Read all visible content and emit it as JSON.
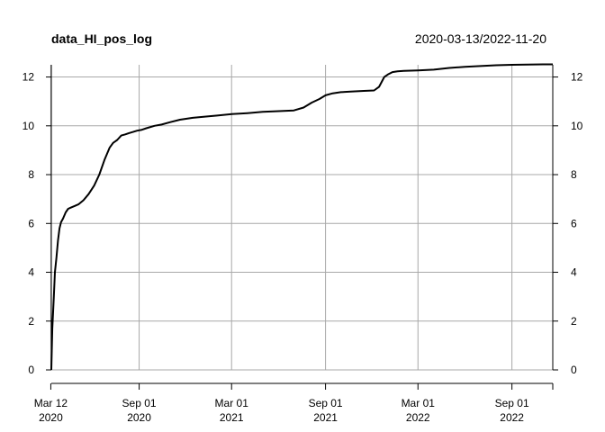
{
  "chart_data": {
    "type": "line",
    "title": "data_HI_pos_log",
    "date_range": "2020-03-13/2022-11-20",
    "xlim": [
      "2020-03-13",
      "2022-11-20"
    ],
    "ylim": [
      0,
      12.5
    ],
    "y_ticks": [
      0,
      2,
      4,
      6,
      8,
      10,
      12
    ],
    "x_ticks": [
      {
        "date": "2020-03-12",
        "label_1": "Mar 12",
        "label_2": "2020"
      },
      {
        "date": "2020-09-01",
        "label_1": "Sep 01",
        "label_2": "2020"
      },
      {
        "date": "2021-03-01",
        "label_1": "Mar 01",
        "label_2": "2021"
      },
      {
        "date": "2021-09-01",
        "label_1": "Sep 01",
        "label_2": "2021"
      },
      {
        "date": "2022-03-01",
        "label_1": "Mar 01",
        "label_2": "2022"
      },
      {
        "date": "2022-09-01",
        "label_1": "Sep 01",
        "label_2": "2022"
      }
    ],
    "grid": true,
    "series": [
      {
        "x": [
          "2020-03-13",
          "2020-03-15",
          "2020-03-18",
          "2020-03-20",
          "2020-03-23",
          "2020-03-26",
          "2020-03-29",
          "2020-04-01",
          "2020-04-05",
          "2020-04-10",
          "2020-04-15",
          "2020-04-20",
          "2020-04-28",
          "2020-05-05",
          "2020-05-15",
          "2020-05-25",
          "2020-06-05",
          "2020-06-15",
          "2020-06-25",
          "2020-07-05",
          "2020-07-12",
          "2020-07-20",
          "2020-07-28",
          "2020-08-05",
          "2020-08-12",
          "2020-08-20",
          "2020-08-28",
          "2020-09-05",
          "2020-09-15",
          "2020-10-01",
          "2020-10-15",
          "2020-11-01",
          "2020-11-20",
          "2020-12-15",
          "2021-01-10",
          "2021-02-01",
          "2021-03-01",
          "2021-04-01",
          "2021-05-01",
          "2021-06-01",
          "2021-07-01",
          "2021-07-20",
          "2021-08-05",
          "2021-08-20",
          "2021-09-01",
          "2021-09-15",
          "2021-10-01",
          "2021-10-20",
          "2021-11-15",
          "2021-12-05",
          "2021-12-15",
          "2021-12-25",
          "2022-01-01",
          "2022-01-10",
          "2022-01-20",
          "2022-02-01",
          "2022-03-01",
          "2022-04-01",
          "2022-05-01",
          "2022-06-01",
          "2022-07-01",
          "2022-08-01",
          "2022-09-01",
          "2022-10-01",
          "2022-11-01",
          "2022-11-20"
        ],
        "values": [
          0,
          1.7,
          3.0,
          4.0,
          4.6,
          5.3,
          5.8,
          6.05,
          6.2,
          6.45,
          6.6,
          6.65,
          6.72,
          6.78,
          6.95,
          7.2,
          7.55,
          8.0,
          8.6,
          9.1,
          9.3,
          9.42,
          9.6,
          9.65,
          9.7,
          9.75,
          9.8,
          9.83,
          9.9,
          10.0,
          10.05,
          10.15,
          10.25,
          10.33,
          10.38,
          10.42,
          10.48,
          10.52,
          10.57,
          10.6,
          10.63,
          10.75,
          10.95,
          11.1,
          11.25,
          11.33,
          11.38,
          11.4,
          11.43,
          11.45,
          11.6,
          12.0,
          12.1,
          12.2,
          12.23,
          12.25,
          12.27,
          12.3,
          12.37,
          12.42,
          12.45,
          12.48,
          12.5,
          12.51,
          12.52,
          12.52
        ]
      }
    ]
  }
}
